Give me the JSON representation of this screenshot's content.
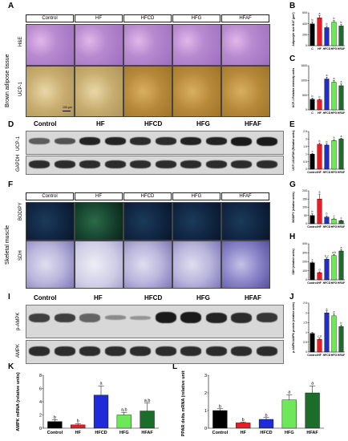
{
  "panels": {
    "a": "A",
    "b": "B",
    "c": "C",
    "d": "D",
    "e": "E",
    "f": "F",
    "g": "G",
    "h": "H",
    "i": "I",
    "j": "J",
    "k": "K",
    "l": "L"
  },
  "groups": [
    "Control",
    "HF",
    "HFCD",
    "HFG",
    "HFAF"
  ],
  "tissue_labels": {
    "bat": "Brown adipose tissue",
    "sm": "Skeletal muscle"
  },
  "stain_labels": {
    "he": "H&E",
    "ucp1": "UCP-1",
    "bodipy": "BODIPY",
    "sdh": "SDH"
  },
  "blot_labels": {
    "ucp1": "UCP-1",
    "gapdh": "GAPDH",
    "pampk": "p-AMPK",
    "ampk": "AMPK"
  },
  "scalebar": "100 μm",
  "colors": {
    "Control": "#000000",
    "HF": "#e41e26",
    "HFCD": "#1f2bd8",
    "HFG": "#6ee85a",
    "HFAF": "#1a6e2a"
  },
  "chart_data": [
    {
      "id": "B",
      "type": "bar",
      "categories": [
        "C",
        "HF",
        "HFCD",
        "HFG",
        "HFAF"
      ],
      "values": [
        400,
        510,
        330,
        430,
        360
      ],
      "errors": [
        30,
        40,
        25,
        30,
        25
      ],
      "letters": [
        "b",
        "a",
        "b",
        "b",
        "b"
      ],
      "ylabel": "Adipocyte size BAT (μm²)",
      "ylim": [
        0,
        600
      ],
      "yticks": [
        0,
        200,
        400,
        600
      ]
    },
    {
      "id": "C",
      "type": "bar",
      "categories": [
        "C",
        "HF",
        "HFCD",
        "HFG",
        "HFAF"
      ],
      "values": [
        360,
        340,
        1050,
        940,
        820
      ],
      "errors": [
        40,
        30,
        60,
        60,
        60
      ],
      "letters": [
        "b",
        "b",
        "a",
        "a",
        "a"
      ],
      "ylabel": "UCP-1 Relative intensity units",
      "ylim": [
        0,
        1500
      ],
      "yticks": [
        0,
        500,
        1000,
        1500
      ]
    },
    {
      "id": "E",
      "type": "bar",
      "categories": [
        "Control",
        "HF",
        "HFCD",
        "HFG",
        "HFAF"
      ],
      "values": [
        1.0,
        1.65,
        1.6,
        1.9,
        2.0
      ],
      "errors": [
        0.05,
        0.08,
        0.08,
        0.06,
        0.06
      ],
      "letters": [
        "c",
        "b",
        "b",
        "a",
        "a"
      ],
      "ylabel": "UCP-1/GAPDH (Relative units)",
      "ylim": [
        0,
        2.5
      ],
      "yticks": [
        0,
        0.5,
        1.0,
        1.5,
        2.0,
        2.5
      ]
    },
    {
      "id": "G",
      "type": "bar",
      "categories": [
        "Control",
        "HF",
        "HFCD",
        "HFG",
        "HFAF"
      ],
      "values": [
        50,
        150,
        40,
        28,
        18
      ],
      "errors": [
        10,
        30,
        8,
        6,
        5
      ],
      "letters": [
        "b",
        "a",
        "b",
        "c",
        "c"
      ],
      "ylabel": "BODIPY (relative units)",
      "ylim": [
        0,
        200
      ],
      "yticks": [
        0,
        50,
        100,
        150,
        200
      ]
    },
    {
      "id": "H",
      "type": "bar",
      "categories": [
        "Control",
        "HF",
        "HFCD",
        "HFG",
        "HFAF"
      ],
      "values": [
        190,
        80,
        230,
        270,
        320
      ],
      "errors": [
        10,
        8,
        12,
        12,
        15
      ],
      "letters": [
        "c",
        "d",
        "b,c",
        "a,b",
        "a"
      ],
      "ylabel": "SDH (relative units)",
      "ylim": [
        0,
        400
      ],
      "yticks": [
        0,
        100,
        200,
        300,
        400
      ]
    },
    {
      "id": "J",
      "type": "bar",
      "categories": [
        "Control",
        "HF",
        "HFCD",
        "HFG",
        "HFAF"
      ],
      "values": [
        0.95,
        0.65,
        2.0,
        1.85,
        1.3
      ],
      "errors": [
        0.05,
        0.05,
        0.1,
        0.1,
        0.08
      ],
      "letters": [
        "",
        "c,d",
        "a",
        "a",
        "b"
      ],
      "ylabel": "p-AMPK/AMPK protein (relative units)",
      "ylim": [
        0,
        2.5
      ],
      "yticks": [
        0,
        0.5,
        1.0,
        1.5,
        2.0,
        2.5
      ]
    },
    {
      "id": "K",
      "type": "bar",
      "categories": [
        "Control",
        "HF",
        "HFCD",
        "HFG",
        "HFAF"
      ],
      "values": [
        1.0,
        0.5,
        5.0,
        2.0,
        2.6
      ],
      "errors": [
        0.3,
        0.2,
        1.4,
        0.4,
        1.2
      ],
      "letters": [
        "b",
        "b",
        "a",
        "a,b",
        "a,b"
      ],
      "ylabel": "AMPK mRNA (relative units)",
      "ylim": [
        0,
        8
      ],
      "yticks": [
        0,
        2,
        4,
        6,
        8
      ]
    },
    {
      "id": "L",
      "type": "bar",
      "categories": [
        "Control",
        "HF",
        "HFCD",
        "HFG",
        "HFAF"
      ],
      "values": [
        1.0,
        0.3,
        0.5,
        1.6,
        2.0
      ],
      "errors": [
        0.1,
        0.05,
        0.1,
        0.3,
        0.4
      ],
      "letters": [
        "b",
        "b",
        "b",
        "a",
        "a"
      ],
      "ylabel": "PPAR delta mRNA (relative units)",
      "ylim": [
        0,
        3
      ],
      "yticks": [
        0,
        1,
        2,
        3
      ]
    }
  ]
}
